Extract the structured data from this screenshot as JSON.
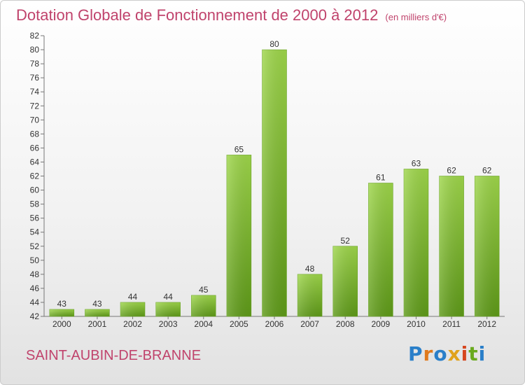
{
  "header": {
    "title": "Dotation Globale de Fonctionnement de 2000 à 2012",
    "unit_note": "(en milliers d'€)"
  },
  "footer": {
    "place_name": "SAINT-AUBIN-DE-BRANNE",
    "logo_letters": [
      "P",
      "r",
      "o",
      "x",
      "i",
      "t",
      "i"
    ]
  },
  "colors": {
    "accent": "#c0436c",
    "bar_light": "#9ed64a",
    "bar_dark": "#5e9a18"
  },
  "chart_data": {
    "type": "bar",
    "title": "Dotation Globale de Fonctionnement de 2000 à 2012",
    "subtitle": "(en milliers d'€)",
    "xlabel": "",
    "ylabel": "",
    "categories": [
      "2000",
      "2001",
      "2002",
      "2003",
      "2004",
      "2005",
      "2006",
      "2007",
      "2008",
      "2009",
      "2010",
      "2011",
      "2012"
    ],
    "values": [
      43,
      43,
      44,
      44,
      45,
      65,
      80,
      48,
      52,
      61,
      63,
      62,
      62
    ],
    "ylim": [
      42,
      82
    ],
    "ytick_step": 2,
    "grid": false,
    "legend": "none"
  }
}
